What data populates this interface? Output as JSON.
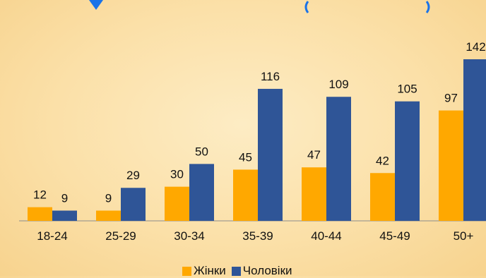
{
  "chart_data": {
    "type": "bar",
    "categories": [
      "18-24",
      "25-29",
      "30-34",
      "35-39",
      "40-44",
      "45-49",
      "50+"
    ],
    "series": [
      {
        "name": "Жінки",
        "color": "#ffa800",
        "values": [
          12,
          9,
          30,
          45,
          47,
          42,
          97
        ]
      },
      {
        "name": "Чоловіки",
        "color": "#2f5597",
        "values": [
          9,
          29,
          50,
          116,
          109,
          105,
          142
        ]
      }
    ],
    "ylim": [
      0,
      142
    ],
    "legend_position": "bottom",
    "grid": false
  }
}
